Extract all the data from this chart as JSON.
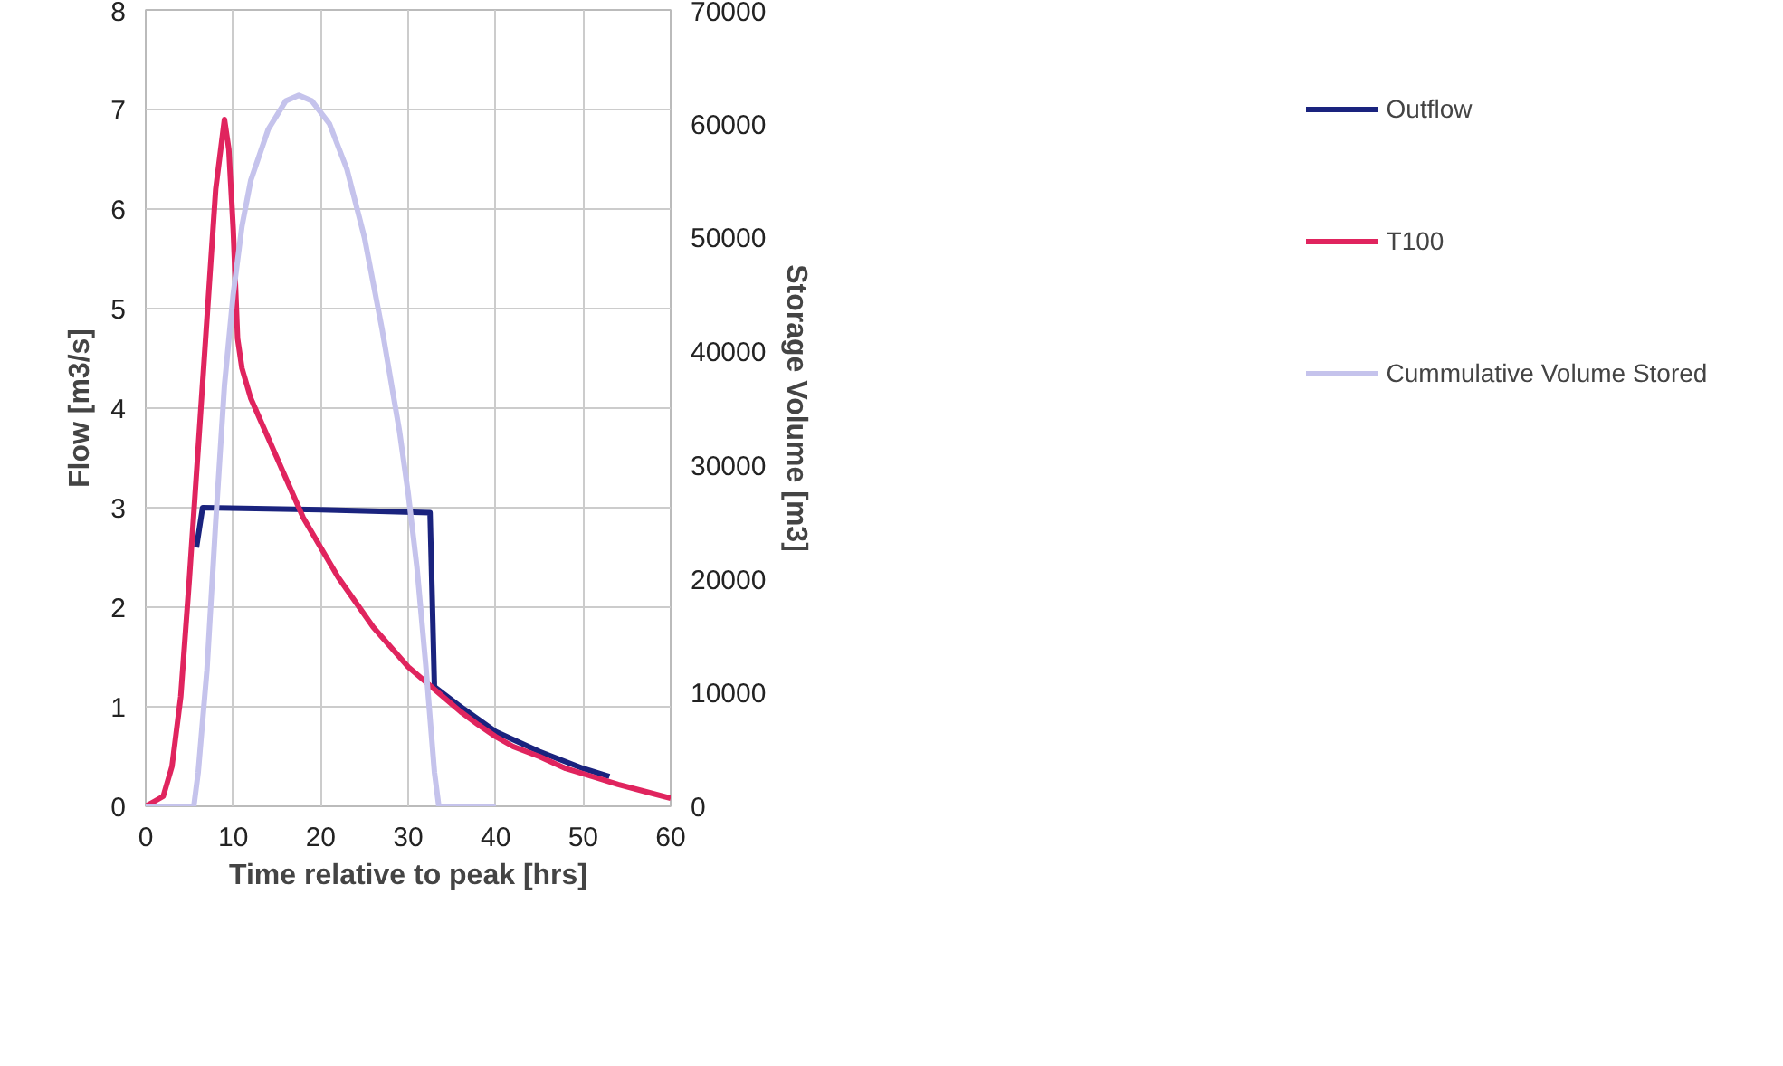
{
  "chart_data": {
    "type": "line",
    "xlabel": "Time relative to peak [hrs]",
    "ylabel": "Flow [m3/s]",
    "y2label": "Storage Volume [m3]",
    "xlim": [
      0,
      60
    ],
    "xticks": [
      0,
      10,
      20,
      30,
      40,
      50,
      60
    ],
    "ylim": [
      0,
      8
    ],
    "yticks": [
      0,
      1,
      2,
      3,
      4,
      5,
      6,
      7,
      8
    ],
    "y2lim": [
      0,
      70000
    ],
    "y2ticks": [
      0,
      10000,
      20000,
      30000,
      40000,
      50000,
      60000,
      70000
    ],
    "grid": true,
    "legend": "right",
    "marker": "none",
    "line_style": "solid",
    "series": [
      {
        "name": "Outflow",
        "color": "#1a237e",
        "x": [
          5.8,
          6.5,
          20,
          32.5,
          33,
          36,
          40,
          45,
          50,
          53
        ],
        "values": [
          2.6,
          3.0,
          2.98,
          2.95,
          1.2,
          1.0,
          0.75,
          0.55,
          0.38,
          0.3
        ]
      },
      {
        "name": "T100",
        "color": "#e0245e",
        "x": [
          0,
          1,
          2,
          3,
          4,
          5,
          6,
          7,
          8,
          9,
          9.5,
          10,
          10.5,
          11,
          12,
          14,
          16,
          18,
          20,
          22,
          24,
          26,
          28,
          30,
          32,
          34,
          36,
          38,
          40,
          42,
          45,
          48,
          51,
          54,
          57,
          60
        ],
        "values": [
          0,
          0.05,
          0.1,
          0.4,
          1.1,
          2.3,
          3.6,
          4.9,
          6.2,
          6.9,
          6.6,
          5.8,
          4.7,
          4.4,
          4.1,
          3.7,
          3.3,
          2.9,
          2.6,
          2.3,
          2.05,
          1.8,
          1.6,
          1.4,
          1.25,
          1.1,
          0.95,
          0.82,
          0.7,
          0.6,
          0.5,
          0.38,
          0.3,
          0.22,
          0.15,
          0.08
        ]
      },
      {
        "name": "Cummulative Volume Stored",
        "color": "#c5c3ec",
        "axis": "y2",
        "x": [
          0,
          5.5,
          6,
          7,
          8,
          9,
          10,
          11,
          12,
          14,
          16,
          17.5,
          19,
          21,
          23,
          25,
          27,
          29,
          30,
          31,
          32,
          33,
          33.5,
          40
        ],
        "values": [
          0,
          0,
          3000,
          12000,
          25000,
          37000,
          45000,
          51000,
          55000,
          59500,
          62000,
          62500,
          62000,
          60000,
          56000,
          50000,
          42000,
          33000,
          27500,
          21000,
          12500,
          3000,
          0,
          0
        ]
      }
    ]
  }
}
